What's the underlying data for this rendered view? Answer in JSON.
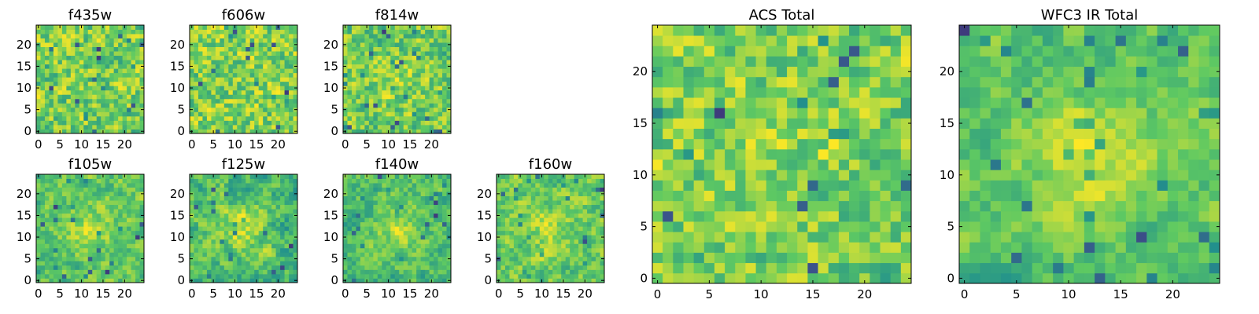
{
  "chart_data": [
    {
      "type": "heatmap",
      "title": "f435w",
      "grid_size": [
        25,
        25
      ],
      "xticks": [
        0,
        5,
        10,
        15,
        20
      ],
      "yticks": [
        0,
        5,
        10,
        15,
        20
      ],
      "xlim": [
        -0.5,
        24.5
      ],
      "ylim": [
        -0.5,
        24.5
      ],
      "colormap": "viridis",
      "seed": 11,
      "smoothness": 0.3,
      "center_bump": 0.0
    },
    {
      "type": "heatmap",
      "title": "f606w",
      "grid_size": [
        25,
        25
      ],
      "xticks": [
        0,
        5,
        10,
        15,
        20
      ],
      "yticks": [
        0,
        5,
        10,
        15,
        20
      ],
      "xlim": [
        -0.5,
        24.5
      ],
      "ylim": [
        -0.5,
        24.5
      ],
      "colormap": "viridis",
      "seed": 23,
      "smoothness": 0.3,
      "center_bump": 0.0
    },
    {
      "type": "heatmap",
      "title": "f814w",
      "grid_size": [
        25,
        25
      ],
      "xticks": [
        0,
        5,
        10,
        15,
        20
      ],
      "yticks": [
        0,
        5,
        10,
        15,
        20
      ],
      "xlim": [
        -0.5,
        24.5
      ],
      "ylim": [
        -0.5,
        24.5
      ],
      "colormap": "viridis",
      "seed": 37,
      "smoothness": 0.35,
      "center_bump": 0.15
    },
    {
      "type": "heatmap",
      "title": "f105w",
      "grid_size": [
        25,
        25
      ],
      "xticks": [
        0,
        5,
        10,
        15,
        20
      ],
      "yticks": [
        0,
        5,
        10,
        15,
        20
      ],
      "xlim": [
        -0.5,
        24.5
      ],
      "ylim": [
        -0.5,
        24.5
      ],
      "colormap": "viridis",
      "seed": 41,
      "smoothness": 0.55,
      "center_bump": 0.35
    },
    {
      "type": "heatmap",
      "title": "f125w",
      "grid_size": [
        25,
        25
      ],
      "xticks": [
        0,
        5,
        10,
        15,
        20
      ],
      "yticks": [
        0,
        5,
        10,
        15,
        20
      ],
      "xlim": [
        -0.5,
        24.5
      ],
      "ylim": [
        -0.5,
        24.5
      ],
      "colormap": "viridis",
      "seed": 53,
      "smoothness": 0.55,
      "center_bump": 0.35
    },
    {
      "type": "heatmap",
      "title": "f140w",
      "grid_size": [
        25,
        25
      ],
      "xticks": [
        0,
        5,
        10,
        15,
        20
      ],
      "yticks": [
        0,
        5,
        10,
        15,
        20
      ],
      "xlim": [
        -0.5,
        24.5
      ],
      "ylim": [
        -0.5,
        24.5
      ],
      "colormap": "viridis",
      "seed": 67,
      "smoothness": 0.55,
      "center_bump": 0.35
    },
    {
      "type": "heatmap",
      "title": "f160w",
      "grid_size": [
        25,
        25
      ],
      "xticks": [
        0,
        5,
        10,
        15,
        20
      ],
      "yticks": [
        0,
        5,
        10,
        15,
        20
      ],
      "xlim": [
        -0.5,
        24.5
      ],
      "ylim": [
        -0.5,
        24.5
      ],
      "colormap": "viridis",
      "seed": 71,
      "smoothness": 0.5,
      "center_bump": 0.25
    },
    {
      "type": "heatmap",
      "title": "ACS Total",
      "grid_size": [
        25,
        25
      ],
      "xticks": [
        0,
        5,
        10,
        15,
        20
      ],
      "yticks": [
        0,
        5,
        10,
        15,
        20
      ],
      "xlim": [
        -0.5,
        24.5
      ],
      "ylim": [
        -0.5,
        24.5
      ],
      "colormap": "viridis",
      "seed": 83,
      "smoothness": 0.35,
      "center_bump": 0.15
    },
    {
      "type": "heatmap",
      "title": "WFC3 IR Total",
      "grid_size": [
        25,
        25
      ],
      "xticks": [
        0,
        5,
        10,
        15,
        20
      ],
      "yticks": [
        0,
        5,
        10,
        15,
        20
      ],
      "xlim": [
        -0.5,
        24.5
      ],
      "ylim": [
        -0.5,
        24.5
      ],
      "colormap": "viridis",
      "seed": 97,
      "smoothness": 0.65,
      "center_bump": 0.45
    }
  ],
  "colors": {
    "viridis_stops": [
      "#440154",
      "#3b528b",
      "#21918c",
      "#5ec962",
      "#fde725"
    ],
    "frame": "#000000",
    "background": "#ffffff"
  }
}
